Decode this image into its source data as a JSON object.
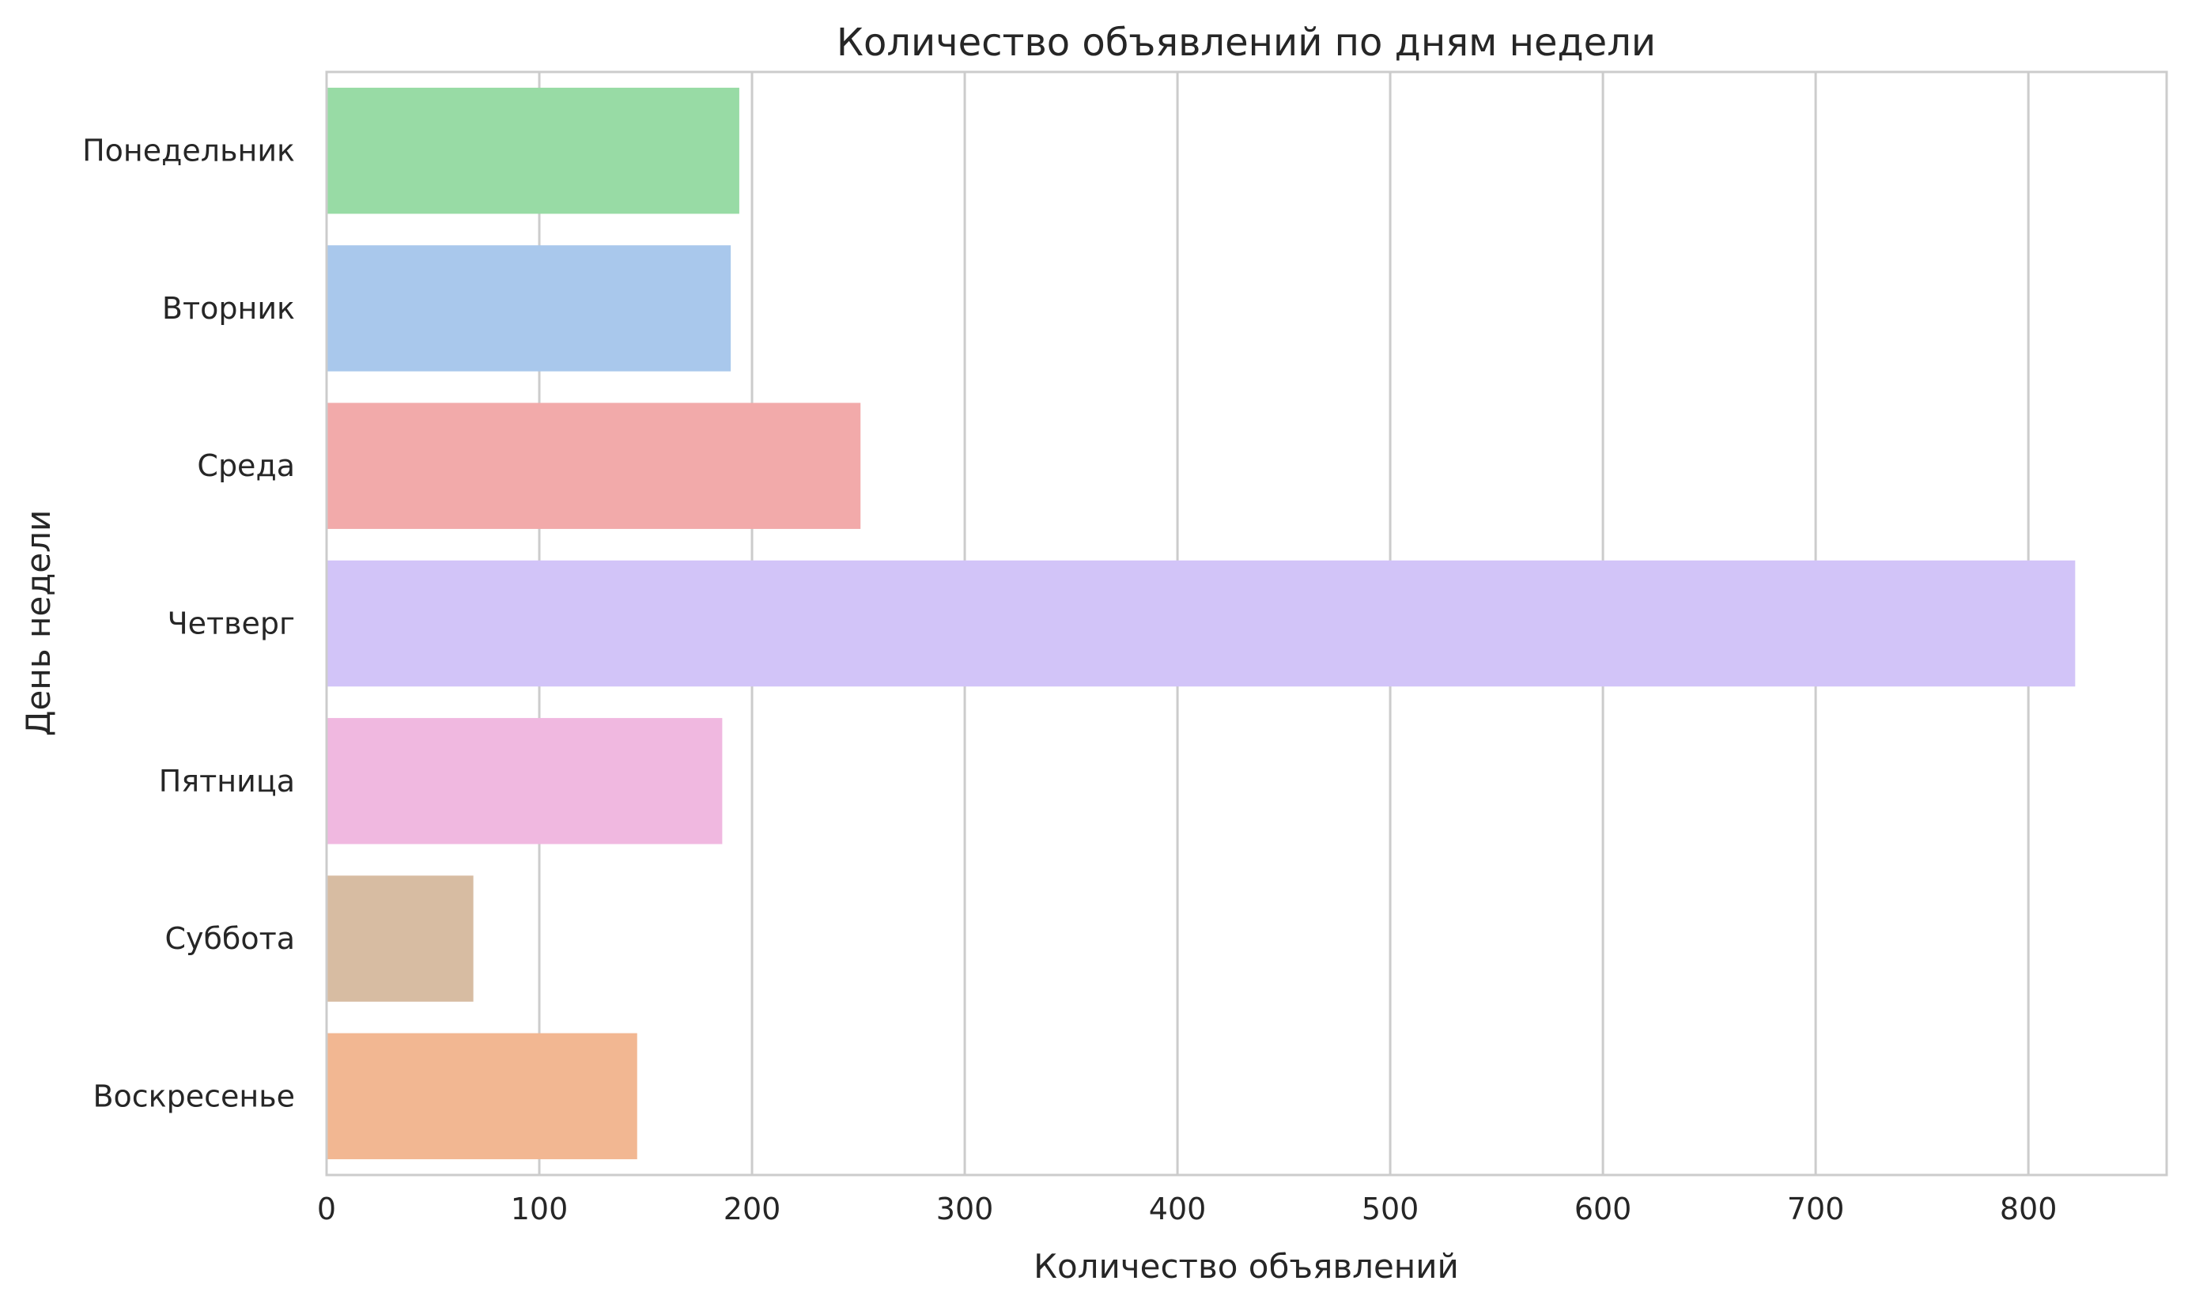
{
  "chart_data": {
    "type": "bar",
    "orientation": "horizontal",
    "title": "Количество объявлений по дням недели",
    "xlabel": "Количество объявлений",
    "ylabel": "День недели",
    "categories": [
      "Понедельник",
      "Вторник",
      "Среда",
      "Четверг",
      "Пятница",
      "Суббота",
      "Воскресенье"
    ],
    "values": [
      194,
      190,
      251,
      822,
      186,
      69,
      146
    ],
    "colors": [
      "#98dba5",
      "#a9c8ec",
      "#f2aaaa",
      "#d2c4f8",
      "#f0b8e0",
      "#d7bca2",
      "#f2b792"
    ],
    "xlim": [
      0,
      865
    ],
    "xticks": [
      0,
      100,
      200,
      300,
      400,
      500,
      600,
      700,
      800
    ],
    "grid": "vertical",
    "legend": "none"
  }
}
